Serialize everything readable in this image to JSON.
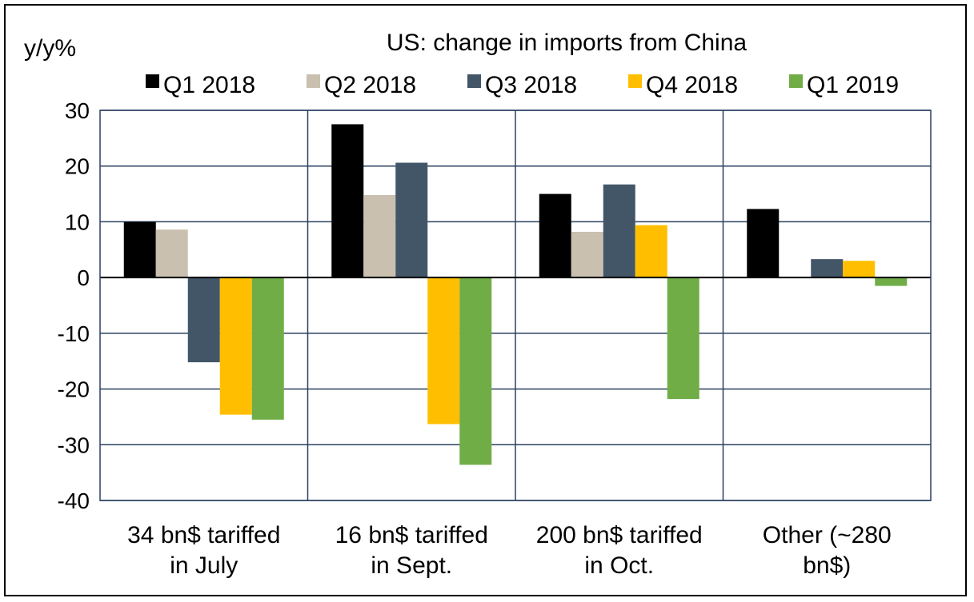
{
  "chart_data": {
    "type": "bar",
    "title": "US: change in imports from China",
    "ylabel": "y/y%",
    "xlabel": "",
    "ylim": [
      -40,
      30
    ],
    "yticks": [
      30,
      20,
      10,
      0,
      -10,
      -20,
      -30,
      -40
    ],
    "grid": true,
    "legend_position": "top",
    "categories": [
      [
        "34 bn$ tariffed",
        "in July"
      ],
      [
        "16 bn$ tariffed",
        "in Sept."
      ],
      [
        "200 bn$ tariffed",
        "in Oct."
      ],
      [
        "Other (~280",
        "bn$)"
      ]
    ],
    "series": [
      {
        "name": "Q1 2018",
        "color": "#000000",
        "values": [
          10,
          27.5,
          15,
          12.3
        ]
      },
      {
        "name": "Q2 2018",
        "color": "#c9c0b0",
        "values": [
          8.6,
          14.8,
          8.2,
          0
        ]
      },
      {
        "name": "Q3 2018",
        "color": "#435668",
        "values": [
          -15.2,
          20.6,
          16.7,
          3.3
        ]
      },
      {
        "name": "Q4 2018",
        "color": "#ffbf00",
        "values": [
          -24.6,
          -26.3,
          9.4,
          3
        ]
      },
      {
        "name": "Q1 2019",
        "color": "#70ad47",
        "values": [
          -25.5,
          -33.6,
          -21.8,
          -1.5
        ]
      }
    ]
  }
}
